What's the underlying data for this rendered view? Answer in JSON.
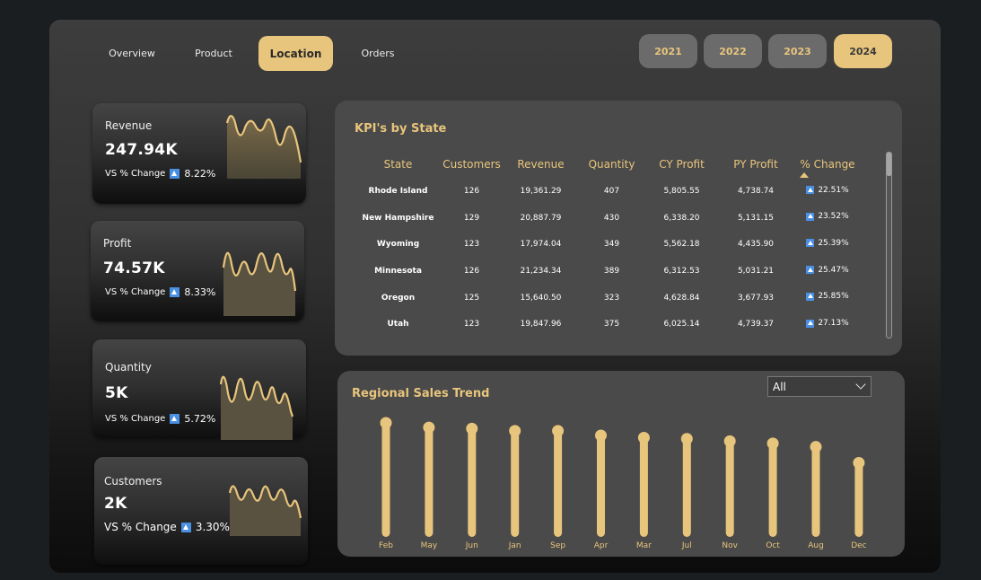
{
  "nav": {
    "tabs": [
      {
        "label": "Overview"
      },
      {
        "label": "Product"
      },
      {
        "label": "Location"
      },
      {
        "label": "Orders"
      }
    ],
    "active_tab": "Location",
    "years": [
      "2021",
      "2022",
      "2023",
      "2024"
    ],
    "active_year": "2024"
  },
  "kpis": [
    {
      "label": "Revenue",
      "value": "247.94K",
      "vs_label": "VS % Change",
      "change": "8.22%"
    },
    {
      "label": "Profit",
      "value": "74.57K",
      "vs_label": "VS % Change",
      "change": "8.33%"
    },
    {
      "label": "Quantity",
      "value": "5K",
      "vs_label": "VS % Change",
      "change": "5.72%"
    },
    {
      "label": "Customers",
      "value": "2K",
      "vs_label": "VS % Change",
      "change": "3.30%"
    }
  ],
  "state_table": {
    "title": "KPI's by State",
    "columns": [
      "State",
      "Customers",
      "Revenue",
      "Quantity",
      "CY Profit",
      "PY Profit",
      "% Change"
    ],
    "rows": [
      [
        "Rhode Island",
        "126",
        "19,361.29",
        "407",
        "5,805.55",
        "4,738.74",
        "22.51%"
      ],
      [
        "New Hampshire",
        "129",
        "20,887.79",
        "430",
        "6,338.20",
        "5,131.15",
        "23.52%"
      ],
      [
        "Wyoming",
        "123",
        "17,974.04",
        "349",
        "5,562.18",
        "4,435.90",
        "25.39%"
      ],
      [
        "Minnesota",
        "126",
        "21,234.34",
        "389",
        "6,312.53",
        "5,031.21",
        "25.47%"
      ],
      [
        "Oregon",
        "125",
        "15,640.50",
        "323",
        "4,628.84",
        "3,677.93",
        "25.85%"
      ],
      [
        "Utah",
        "123",
        "19,847.96",
        "375",
        "6,025.14",
        "4,739.37",
        "27.13%"
      ]
    ]
  },
  "trend": {
    "title": "Regional Sales Trend",
    "filter_value": "All"
  },
  "chart_data": {
    "type": "bar",
    "categories": [
      "Feb",
      "May",
      "Jun",
      "Jan",
      "Sep",
      "Apr",
      "Mar",
      "Jul",
      "Nov",
      "Oct",
      "Aug",
      "Dec"
    ],
    "values": [
      1.0,
      0.96,
      0.95,
      0.93,
      0.93,
      0.89,
      0.87,
      0.86,
      0.84,
      0.82,
      0.79,
      0.65
    ],
    "title": "Regional Sales Trend",
    "ylim": [
      0,
      1
    ]
  },
  "colors": {
    "accent": "#e8c57c",
    "panel": "#4a4a4a",
    "change_icon": "#4a90e2"
  },
  "icons": {
    "change_up": "up-triangle-icon",
    "dropdown": "chevron-down-icon"
  }
}
